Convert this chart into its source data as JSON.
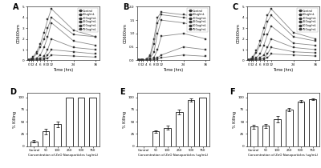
{
  "time_points": [
    0,
    1,
    2,
    4,
    6,
    8,
    10,
    12,
    24,
    36
  ],
  "panel_A": {
    "label": "A",
    "ylabel": "OD600nm",
    "ylim": [
      0,
      5
    ],
    "yticks": [
      0,
      1,
      2,
      3,
      4,
      5
    ],
    "series": {
      "Control": [
        0.05,
        0.1,
        0.3,
        0.8,
        1.5,
        2.6,
        3.8,
        4.8,
        2.8,
        2.2
      ],
      "50ug/mL": [
        0.05,
        0.08,
        0.2,
        0.6,
        1.2,
        2.0,
        3.0,
        4.0,
        2.4,
        2.2
      ],
      "100ug/mL": [
        0.05,
        0.07,
        0.1,
        0.2,
        0.5,
        1.2,
        2.2,
        3.5,
        1.8,
        1.4
      ],
      "250ug/mL": [
        0.05,
        0.05,
        0.08,
        0.1,
        0.2,
        0.4,
        1.0,
        2.0,
        1.2,
        1.0
      ],
      "500ug/mL": [
        0.05,
        0.05,
        0.05,
        0.08,
        0.1,
        0.15,
        0.5,
        1.0,
        0.8,
        0.6
      ],
      "750ug/mL": [
        0.05,
        0.05,
        0.05,
        0.05,
        0.08,
        0.1,
        0.2,
        0.5,
        0.4,
        0.3
      ]
    }
  },
  "panel_B": {
    "label": "B",
    "ylabel": "OD600nm",
    "ylim": [
      0.0,
      2.0
    ],
    "yticks": [
      0.0,
      0.5,
      1.0,
      1.5,
      2.0
    ],
    "series": {
      "Control": [
        0.0,
        0.0,
        0.0,
        0.05,
        0.2,
        0.8,
        1.6,
        1.8,
        1.7,
        1.6
      ],
      "50ug/mL": [
        0.0,
        0.0,
        0.0,
        0.05,
        0.15,
        0.6,
        1.4,
        1.7,
        1.6,
        1.5
      ],
      "100ug/mL": [
        0.0,
        0.0,
        0.0,
        0.03,
        0.08,
        0.3,
        1.0,
        1.5,
        1.4,
        1.2
      ],
      "250ug/mL": [
        0.0,
        0.0,
        0.0,
        0.02,
        0.05,
        0.1,
        0.4,
        0.9,
        1.0,
        0.8
      ],
      "500ug/mL": [
        0.0,
        0.0,
        0.0,
        0.0,
        0.02,
        0.05,
        0.1,
        0.2,
        0.5,
        0.4
      ],
      "750ug/mL": [
        0.0,
        0.0,
        0.0,
        0.0,
        0.01,
        0.03,
        0.05,
        0.1,
        0.2,
        0.15
      ]
    }
  },
  "panel_C": {
    "label": "C",
    "ylabel": "OD600nm",
    "ylim": [
      0,
      5
    ],
    "yticks": [
      0,
      1,
      2,
      3,
      4,
      5
    ],
    "series": {
      "Control": [
        0.05,
        0.1,
        0.3,
        0.9,
        1.8,
        3.0,
        4.2,
        4.8,
        2.6,
        2.0
      ],
      "50ug/mL": [
        0.05,
        0.08,
        0.25,
        0.7,
        1.4,
        2.4,
        3.6,
        4.2,
        2.2,
        1.8
      ],
      "100ug/mL": [
        0.05,
        0.07,
        0.1,
        0.25,
        0.6,
        1.4,
        2.4,
        3.2,
        1.6,
        1.4
      ],
      "250ug/mL": [
        0.05,
        0.05,
        0.08,
        0.12,
        0.25,
        0.5,
        1.2,
        2.0,
        1.2,
        1.0
      ],
      "500ug/mL": [
        0.05,
        0.05,
        0.05,
        0.08,
        0.12,
        0.2,
        0.6,
        1.2,
        0.8,
        0.7
      ],
      "750ug/mL": [
        0.05,
        0.05,
        0.05,
        0.05,
        0.08,
        0.12,
        0.25,
        0.6,
        0.5,
        0.4
      ]
    }
  },
  "panel_D": {
    "label": "D",
    "ylabel": "% Killing",
    "ylim": [
      0,
      110
    ],
    "yticks": [
      0,
      25,
      50,
      75,
      100
    ],
    "categories": [
      "Control",
      "50",
      "100",
      "250",
      "500",
      "750"
    ],
    "values": [
      10,
      30,
      45,
      100,
      100,
      100
    ],
    "errors": [
      3,
      6,
      6,
      0,
      0,
      0
    ],
    "xlabel": "Concentration of ZnO Nanoparticles (ug/mL)"
  },
  "panel_E": {
    "label": "E",
    "ylabel": "% Killing",
    "ylim": [
      0,
      110
    ],
    "yticks": [
      0,
      25,
      50,
      75,
      100
    ],
    "categories": [
      "Control",
      "50",
      "100",
      "250",
      "500",
      "750"
    ],
    "values": [
      0,
      30,
      38,
      70,
      95,
      100
    ],
    "errors": [
      0,
      3,
      4,
      5,
      3,
      0
    ],
    "xlabel": "Concentration of ZnO Nanoparticles (ug/mL)"
  },
  "panel_F": {
    "label": "F",
    "ylabel": "% Killing",
    "ylim": [
      0,
      110
    ],
    "yticks": [
      0,
      25,
      50,
      75,
      100
    ],
    "categories": [
      "Control",
      "50",
      "100",
      "250",
      "500",
      "750"
    ],
    "values": [
      40,
      42,
      55,
      75,
      92,
      96
    ],
    "errors": [
      4,
      4,
      7,
      3,
      3,
      2
    ],
    "xlabel": "Concentration of ZnO Nanoparticles (ug/mL)"
  },
  "legend_labels": [
    "Control",
    "50ug/mL",
    "100ug/mL",
    "250ug/mL",
    "500ug/mL",
    "750ug/mL"
  ],
  "line_color": "#888888",
  "marker": "s",
  "markersize": 2.0,
  "bar_color": "white",
  "bar_edgecolor": "#333333",
  "bar_linewidth": 0.7,
  "xlabel_top": "Time (hrs)"
}
